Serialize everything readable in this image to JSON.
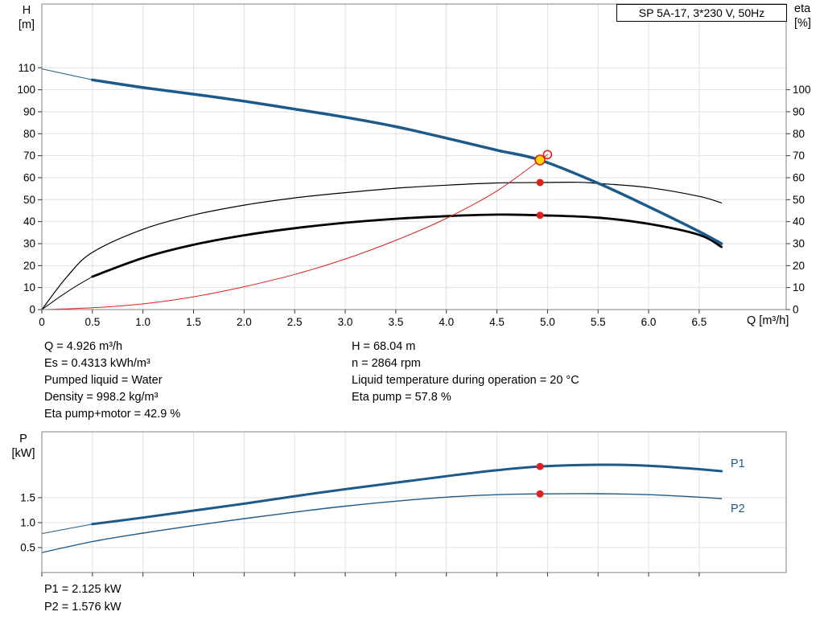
{
  "title_box": {
    "label": "SP 5A-17, 3*230 V, 50Hz"
  },
  "axis_labels": {
    "h": "H\n[m]",
    "eta": "eta\n[%]",
    "q": "Q [m³/h]",
    "p": "P\n[kW]"
  },
  "info": {
    "left": [
      "Q = 4.926 m³/h",
      "Es = 0.4313 kWh/m³",
      "Pumped liquid = Water",
      "Density = 998.2 kg/m³",
      "Eta pump+motor = 42.9 %"
    ],
    "right": [
      "H = 68.04 m",
      "n = 2864 rpm",
      "Liquid temperature during operation = 20 °C",
      "Eta pump = 57.8 %"
    ]
  },
  "power_info": [
    "P1 = 2.125 kW",
    "P2 = 1.576 kW"
  ],
  "series_labels": {
    "p1": "P1",
    "p2": "P2"
  },
  "colors": {
    "curve_blue": "#1d5a8a",
    "red": "#e01f1f",
    "black": "#000000",
    "grid": "#e0e0e0",
    "border": "#808080",
    "duty_yellow": "#ffd800"
  },
  "chart_data": [
    {
      "id": "top",
      "type": "line",
      "title": "SP 5A-17, 3*230 V, 50Hz",
      "x_axis": {
        "label": "Q [m³/h]",
        "min": 0,
        "max": 7.36,
        "ticks": [
          0,
          0.5,
          1,
          1.5,
          2,
          2.5,
          3,
          3.5,
          4,
          4.5,
          5,
          5.5,
          6,
          6.5
        ]
      },
      "y_left": {
        "label": "H [m]",
        "min": 0,
        "max": 139,
        "ticks": [
          0,
          10,
          20,
          30,
          40,
          50,
          60,
          70,
          80,
          90,
          100,
          110
        ]
      },
      "y_right": {
        "label": "eta [%]",
        "min": 0,
        "max": 139,
        "ticks": [
          0,
          10,
          20,
          30,
          40,
          50,
          60,
          70,
          80,
          90,
          100
        ]
      },
      "series": [
        {
          "name": "eta-pump",
          "axis": "right",
          "color_key": "black",
          "width": 1.2,
          "points": [
            [
              0,
              0
            ],
            [
              0.25,
              15
            ],
            [
              0.5,
              26
            ],
            [
              1,
              36.5
            ],
            [
              1.5,
              43
            ],
            [
              2,
              47.5
            ],
            [
              2.5,
              50.8
            ],
            [
              3,
              53.2
            ],
            [
              3.5,
              55.2
            ],
            [
              4,
              56.6
            ],
            [
              4.5,
              57.6
            ],
            [
              4.926,
              57.8
            ],
            [
              5.3,
              57.9
            ],
            [
              5.5,
              57.4
            ],
            [
              6,
              55.5
            ],
            [
              6.5,
              51.5
            ],
            [
              6.72,
              48.5
            ]
          ]
        },
        {
          "name": "eta-pump-motor",
          "axis": "right",
          "color_key": "black",
          "width": 2.8,
          "lead": [
            [
              0,
              0
            ],
            [
              0.2,
              6.5
            ],
            [
              0.35,
              11
            ],
            [
              0.5,
              15
            ]
          ],
          "points": [
            [
              0.5,
              15
            ],
            [
              1,
              23.5
            ],
            [
              1.5,
              29.5
            ],
            [
              2,
              33.8
            ],
            [
              2.5,
              37
            ],
            [
              3,
              39.5
            ],
            [
              3.5,
              41.3
            ],
            [
              4,
              42.5
            ],
            [
              4.5,
              43.2
            ],
            [
              4.926,
              42.9
            ],
            [
              5.5,
              41.8
            ],
            [
              6,
              39
            ],
            [
              6.5,
              34
            ],
            [
              6.72,
              28.5
            ]
          ]
        },
        {
          "name": "operating-curve",
          "axis": "left",
          "color_key": "red",
          "width": 1,
          "points": [
            [
              0,
              0
            ],
            [
              0.5,
              0.8
            ],
            [
              1,
              2.6
            ],
            [
              1.5,
              5.8
            ],
            [
              2,
              10.4
            ],
            [
              2.5,
              16
            ],
            [
              3,
              23
            ],
            [
              3.5,
              31.5
            ],
            [
              4,
              41.5
            ],
            [
              4.5,
              54
            ],
            [
              4.926,
              68.04
            ],
            [
              5.0,
              70.5
            ]
          ]
        },
        {
          "name": "pump-curve",
          "axis": "left",
          "color_key": "curve_blue",
          "width": 3.5,
          "lead": [
            [
              0,
              109.5
            ],
            [
              0.25,
              107
            ],
            [
              0.5,
              104.5
            ]
          ],
          "points": [
            [
              0.5,
              104.5
            ],
            [
              1,
              101
            ],
            [
              1.5,
              98
            ],
            [
              2,
              94.8
            ],
            [
              2.5,
              91.2
            ],
            [
              3,
              87.5
            ],
            [
              3.5,
              83.2
            ],
            [
              4,
              78
            ],
            [
              4.5,
              72.5
            ],
            [
              4.926,
              68.04
            ],
            [
              5.5,
              57.5
            ],
            [
              6,
              46.8
            ],
            [
              6.5,
              35.5
            ],
            [
              6.72,
              30
            ]
          ]
        }
      ],
      "markers": [
        {
          "name": "duty-point",
          "x": 4.926,
          "y": 68.04,
          "axis": "left",
          "r": 6,
          "fill_key": "duty_yellow",
          "stroke_key": "red"
        },
        {
          "name": "end-of-curve-point",
          "x": 5.0,
          "y": 70.5,
          "axis": "left",
          "r": 5,
          "stroke_key": "red"
        },
        {
          "name": "eta-pump-point",
          "x": 4.926,
          "y": 57.8,
          "axis": "right",
          "r": 4.5,
          "fill_key": "red"
        },
        {
          "name": "eta-pump-motor-point",
          "x": 4.926,
          "y": 42.9,
          "axis": "right",
          "r": 4.5,
          "fill_key": "red"
        }
      ]
    },
    {
      "id": "bottom",
      "type": "line",
      "title": "",
      "x_axis": {
        "label": "",
        "min": 0,
        "max": 7.36,
        "ticks": [
          0,
          0.5,
          1,
          1.5,
          2,
          2.5,
          3,
          3.5,
          4,
          4.5,
          5,
          5.5,
          6,
          6.5
        ]
      },
      "y_left": {
        "label": "P [kW]",
        "min": 0,
        "max": 2.82,
        "ticks": [
          0.5,
          1,
          1.5
        ]
      },
      "series": [
        {
          "name": "P1",
          "color_key": "curve_blue",
          "width": 3,
          "lead": [
            [
              0,
              0.78
            ],
            [
              0.5,
              0.97
            ]
          ],
          "points": [
            [
              0.5,
              0.97
            ],
            [
              1,
              1.1
            ],
            [
              1.5,
              1.24
            ],
            [
              2,
              1.38
            ],
            [
              2.5,
              1.53
            ],
            [
              3,
              1.67
            ],
            [
              3.5,
              1.8
            ],
            [
              4,
              1.93
            ],
            [
              4.5,
              2.05
            ],
            [
              4.926,
              2.125
            ],
            [
              5.5,
              2.16
            ],
            [
              6,
              2.14
            ],
            [
              6.5,
              2.07
            ],
            [
              6.72,
              2.03
            ]
          ]
        },
        {
          "name": "P2",
          "color_key": "curve_blue",
          "width": 1.4,
          "points": [
            [
              0,
              0.4
            ],
            [
              0.5,
              0.62
            ],
            [
              1,
              0.79
            ],
            [
              1.5,
              0.94
            ],
            [
              2,
              1.08
            ],
            [
              2.5,
              1.21
            ],
            [
              3,
              1.33
            ],
            [
              3.5,
              1.43
            ],
            [
              4,
              1.51
            ],
            [
              4.5,
              1.56
            ],
            [
              4.926,
              1.576
            ],
            [
              5.5,
              1.58
            ],
            [
              6,
              1.56
            ],
            [
              6.5,
              1.51
            ],
            [
              6.72,
              1.48
            ]
          ]
        }
      ],
      "markers": [
        {
          "name": "p1-point",
          "x": 4.926,
          "y": 2.125,
          "r": 4.5,
          "fill_key": "red"
        },
        {
          "name": "p2-point",
          "x": 4.926,
          "y": 1.576,
          "r": 4.5,
          "fill_key": "red"
        }
      ]
    }
  ]
}
